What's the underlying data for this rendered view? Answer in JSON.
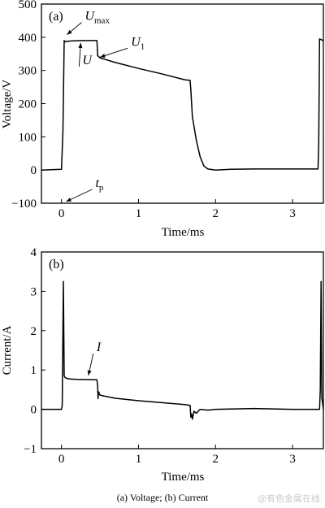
{
  "chart_data": [
    {
      "type": "line",
      "panel": "(a)",
      "xlabel": "Time/ms",
      "ylabel": "Voltage/V",
      "xlim": [
        -0.26,
        3.4
      ],
      "ylim": [
        -100,
        500
      ],
      "xticks": [
        0,
        1,
        2,
        3
      ],
      "yticks": [
        -100,
        0,
        100,
        200,
        300,
        400,
        500
      ],
      "grid": false,
      "series": [
        {
          "x": [
            -0.26,
            0.0,
            0.02,
            0.035,
            0.05,
            0.08,
            0.15,
            0.3,
            0.46,
            0.47,
            0.5,
            0.7,
            1.0,
            1.3,
            1.6,
            1.67,
            1.68,
            1.7,
            1.75,
            1.8,
            1.85,
            1.9,
            2.0,
            2.2,
            2.5,
            3.0,
            3.33,
            3.34,
            3.35,
            3.4
          ],
          "y": [
            0,
            2,
            120,
            390,
            386,
            388,
            389,
            390,
            390,
            345,
            338,
            324,
            306,
            290,
            272,
            270,
            240,
            160,
            90,
            40,
            12,
            3,
            0,
            2,
            3,
            3,
            3,
            80,
            395,
            390
          ]
        }
      ],
      "annotations": [
        {
          "text": "U",
          "sub": "max",
          "x": 0.04,
          "y": 398
        },
        {
          "text": "U",
          "sub": "",
          "x": 0.25,
          "y": 390
        },
        {
          "text": "U",
          "sub": "1",
          "x": 0.47,
          "y": 340
        },
        {
          "text": "t",
          "sub": "p",
          "x": 0.04,
          "y": -100
        }
      ]
    },
    {
      "type": "line",
      "panel": "(b)",
      "xlabel": "Time/ms",
      "ylabel": "Current/A",
      "xlim": [
        -0.26,
        3.4
      ],
      "ylim": [
        -1,
        4
      ],
      "xticks": [
        0,
        1,
        2,
        3
      ],
      "yticks": [
        -1,
        0,
        1,
        2,
        3,
        4
      ],
      "grid": false,
      "series": [
        {
          "x": [
            -0.26,
            0.0,
            0.01,
            0.025,
            0.035,
            0.05,
            0.1,
            0.2,
            0.46,
            0.47,
            0.475,
            0.48,
            0.5,
            0.7,
            1.0,
            1.3,
            1.6,
            1.67,
            1.68,
            1.69,
            1.7,
            1.72,
            1.75,
            1.8,
            1.9,
            2.0,
            2.5,
            3.0,
            3.35,
            3.36,
            3.37,
            3.38,
            3.4
          ],
          "y": [
            0,
            0,
            0.1,
            3.25,
            0.85,
            0.8,
            0.77,
            0.76,
            0.75,
            0.6,
            0.27,
            0.45,
            0.36,
            0.28,
            0.22,
            0.17,
            0.12,
            0.1,
            -0.2,
            -0.12,
            -0.25,
            -0.05,
            -0.1,
            0.0,
            -0.02,
            0.0,
            0.02,
            0.0,
            0.0,
            0.5,
            3.25,
            0.3,
            0.0
          ]
        }
      ],
      "annotations": [
        {
          "text": "I",
          "sub": "",
          "x": 0.35,
          "y": 0.78
        }
      ]
    }
  ],
  "caption": "(a) Voltage;  (b) Current",
  "watermark": "@有色金属在线"
}
